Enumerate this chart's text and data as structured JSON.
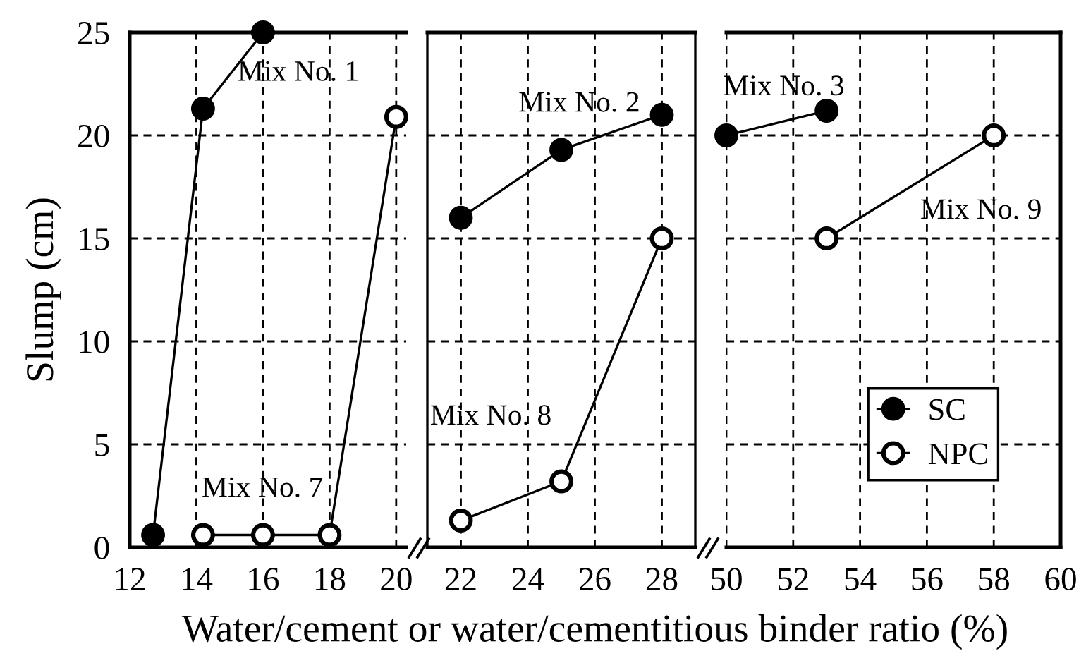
{
  "chart_data": [
    {
      "type": "line",
      "ylabel": "Slump (cm)",
      "xlabel": "Water/cement or water/cementitious binder ratio (%)",
      "xlim": [
        12,
        20.3
      ],
      "xticks": [
        12,
        14,
        16,
        18,
        20
      ],
      "ylim": [
        0,
        25
      ],
      "yticks": [
        0,
        5,
        10,
        15,
        20,
        25
      ],
      "grid": true,
      "marker": "circle",
      "line_style": "solid",
      "series": [
        {
          "color": "#000000",
          "x": [
            12.7,
            14.2,
            16
          ],
          "values": [
            0.6,
            21.3,
            25
          ]
        },
        {
          "color": "#000000",
          "x": [
            14.2,
            16,
            18,
            20
          ],
          "values": [
            0.6,
            0.6,
            0.6,
            20.9
          ]
        }
      ],
      "annotations": [
        "Mix No. 1",
        "Mix No. 7"
      ]
    },
    {
      "type": "line",
      "xlim": [
        21,
        29
      ],
      "xticks": [
        22,
        24,
        26,
        28
      ],
      "ylim": [
        0,
        25
      ],
      "yticks": [
        0,
        5,
        10,
        15,
        20,
        25
      ],
      "grid": true,
      "marker": "circle",
      "line_style": "solid",
      "tick_labels": "x",
      "series": [
        {
          "color": "#000000",
          "x": [
            22,
            25,
            28
          ],
          "values": [
            16,
            19.3,
            21
          ]
        },
        {
          "color": "#000000",
          "x": [
            22,
            25,
            28
          ],
          "values": [
            1.3,
            3.2,
            15
          ]
        }
      ],
      "annotations": [
        "Mix No. 2",
        "Mix No. 8"
      ]
    },
    {
      "type": "line",
      "xlim": [
        50,
        60
      ],
      "xticks": [
        50,
        52,
        54,
        56,
        58,
        60
      ],
      "ylim": [
        0,
        25
      ],
      "yticks": [
        0,
        5,
        10,
        15,
        20,
        25
      ],
      "grid": true,
      "marker": "circle",
      "line_style": "solid",
      "tick_labels": "x",
      "legend": "bottom right",
      "series": [
        {
          "name": "SC",
          "color": "#000000",
          "x": [
            50,
            53
          ],
          "values": [
            20,
            21.2
          ]
        },
        {
          "name": "NPC",
          "color": "#000000",
          "x": [
            53,
            58
          ],
          "values": [
            15,
            20
          ]
        }
      ],
      "annotations": [
        "Mix No. 3",
        "Mix No. 9"
      ]
    }
  ]
}
